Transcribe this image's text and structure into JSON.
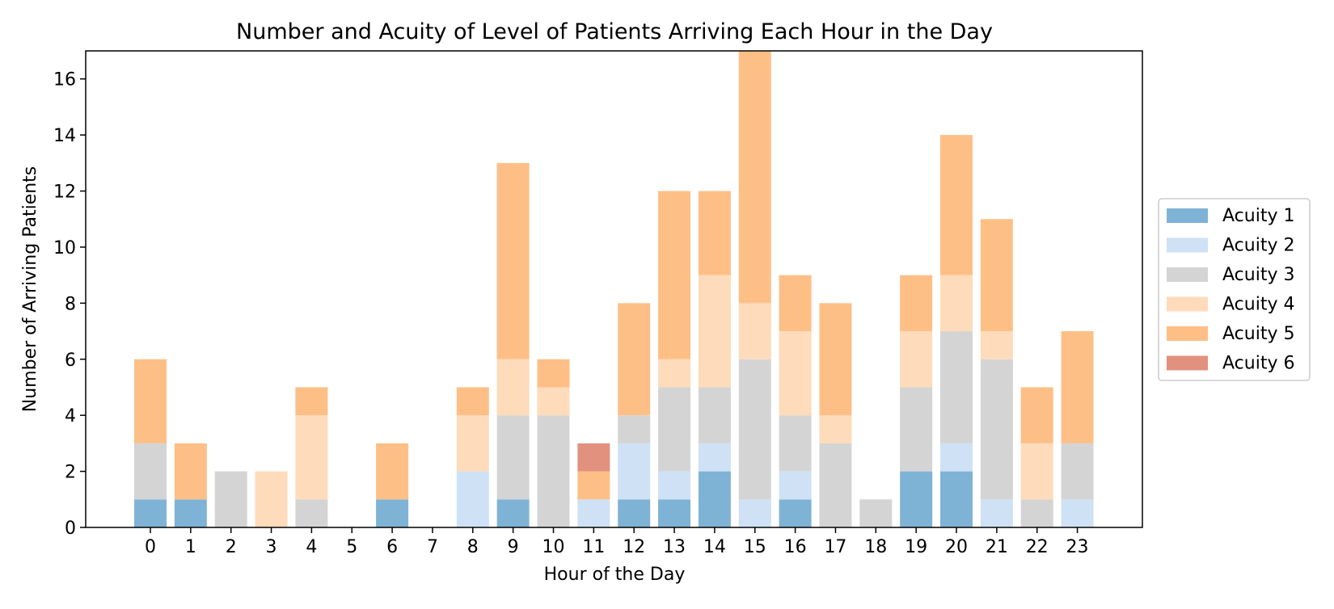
{
  "chart_data": {
    "type": "bar",
    "stacked": true,
    "title": "Number and Acuity of Level of Patients Arriving Each Hour in the Day",
    "xlabel": "Hour of the Day",
    "ylabel": "Number of Arriving Patients",
    "ylim": [
      0,
      17
    ],
    "yticks": [
      0,
      2,
      4,
      6,
      8,
      10,
      12,
      14,
      16
    ],
    "categories": [
      "0",
      "1",
      "2",
      "3",
      "4",
      "5",
      "6",
      "7",
      "8",
      "9",
      "10",
      "11",
      "12",
      "13",
      "14",
      "15",
      "16",
      "17",
      "18",
      "19",
      "20",
      "21",
      "22",
      "23"
    ],
    "grid": false,
    "legend_position": "right",
    "series": [
      {
        "name": "Acuity 1",
        "color": "#7fb3d5",
        "values": [
          1,
          1,
          0,
          0,
          0,
          0,
          1,
          0,
          0,
          1,
          0,
          0,
          1,
          1,
          2,
          0,
          1,
          0,
          0,
          2,
          2,
          0,
          0,
          0
        ]
      },
      {
        "name": "Acuity 2",
        "color": "#cfe1f5",
        "values": [
          0,
          0,
          0,
          0,
          0,
          0,
          0,
          0,
          2,
          0,
          0,
          1,
          2,
          1,
          1,
          1,
          1,
          0,
          0,
          0,
          1,
          1,
          0,
          1
        ]
      },
      {
        "name": "Acuity 3",
        "color": "#d4d4d4",
        "values": [
          2,
          0,
          2,
          0,
          1,
          0,
          0,
          0,
          0,
          3,
          4,
          0,
          1,
          3,
          2,
          5,
          2,
          3,
          1,
          3,
          4,
          5,
          1,
          2
        ]
      },
      {
        "name": "Acuity 4",
        "color": "#fedbba",
        "values": [
          0,
          0,
          0,
          2,
          3,
          0,
          0,
          0,
          2,
          2,
          1,
          0,
          0,
          1,
          4,
          2,
          3,
          1,
          0,
          2,
          2,
          1,
          2,
          0
        ]
      },
      {
        "name": "Acuity 5",
        "color": "#febf87",
        "values": [
          3,
          2,
          0,
          0,
          1,
          0,
          2,
          0,
          1,
          7,
          1,
          1,
          4,
          6,
          3,
          9,
          2,
          4,
          0,
          2,
          5,
          4,
          2,
          4
        ]
      },
      {
        "name": "Acuity 6",
        "color": "#e2917f",
        "values": [
          0,
          0,
          0,
          0,
          0,
          0,
          0,
          0,
          0,
          0,
          0,
          1,
          0,
          0,
          0,
          0,
          0,
          0,
          0,
          0,
          0,
          0,
          0,
          0
        ]
      }
    ]
  }
}
